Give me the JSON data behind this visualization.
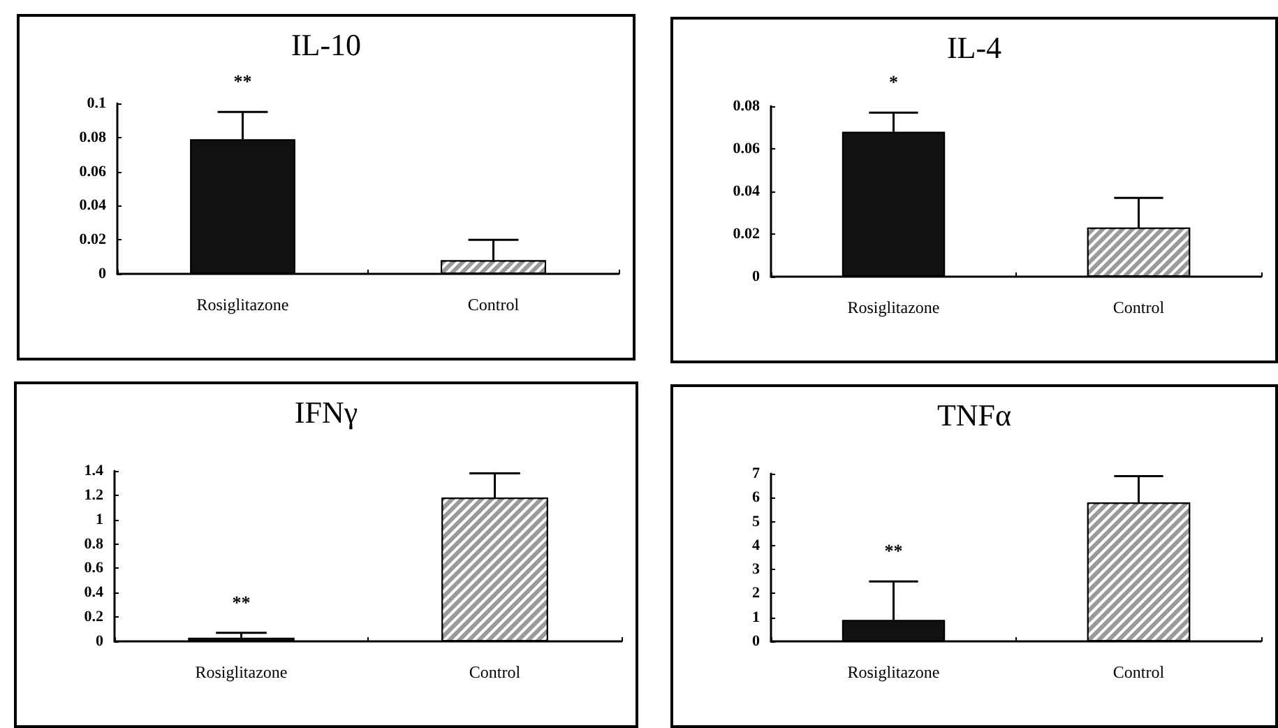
{
  "chart_data": [
    {
      "type": "bar",
      "title": "IL-10",
      "categories": [
        "Rosiglitazone",
        "Control"
      ],
      "values": [
        0.079,
        0.008
      ],
      "colors": [
        "#111111",
        "#9a9a9a"
      ],
      "errors": [
        [
          0.079,
          0.095
        ],
        [
          0.008,
          0.02
        ]
      ],
      "ylim": [
        0,
        0.1
      ],
      "yticks": [
        0,
        0.02,
        0.04,
        0.06,
        0.08,
        0.1
      ],
      "annotations": [
        "**"
      ]
    },
    {
      "type": "bar",
      "title": "IL-4",
      "categories": [
        "Rosiglitazone",
        "Control"
      ],
      "values": [
        0.068,
        0.023
      ],
      "colors": [
        "#111111",
        "#9a9a9a"
      ],
      "errors": [
        [
          0.068,
          0.077
        ],
        [
          0.023,
          0.037
        ]
      ],
      "ylim": [
        0,
        0.08
      ],
      "yticks": [
        0,
        0.02,
        0.04,
        0.06,
        0.08
      ],
      "annotations": [
        "*"
      ]
    },
    {
      "type": "bar",
      "title": "IFNγ",
      "categories": [
        "Rosiglitazone",
        "Control"
      ],
      "values": [
        0.03,
        1.18
      ],
      "colors": [
        "#111111",
        "#9a9a9a"
      ],
      "errors": [
        [
          0.03,
          0.07
        ],
        [
          1.18,
          1.38
        ]
      ],
      "ylim": [
        0,
        1.4
      ],
      "yticks": [
        0,
        0.2,
        0.4,
        0.6,
        0.8,
        1,
        1.2,
        1.4
      ],
      "annotations": [
        "**"
      ]
    },
    {
      "type": "bar",
      "title": "TNFα",
      "categories": [
        "Rosiglitazone",
        "Control"
      ],
      "values": [
        0.9,
        5.8
      ],
      "colors": [
        "#111111",
        "#9a9a9a"
      ],
      "errors": [
        [
          0.9,
          2.5
        ],
        [
          5.8,
          6.9
        ]
      ],
      "ylim": [
        0,
        7
      ],
      "yticks": [
        0,
        1,
        2,
        3,
        4,
        5,
        6,
        7
      ],
      "annotations": [
        "**"
      ]
    }
  ]
}
